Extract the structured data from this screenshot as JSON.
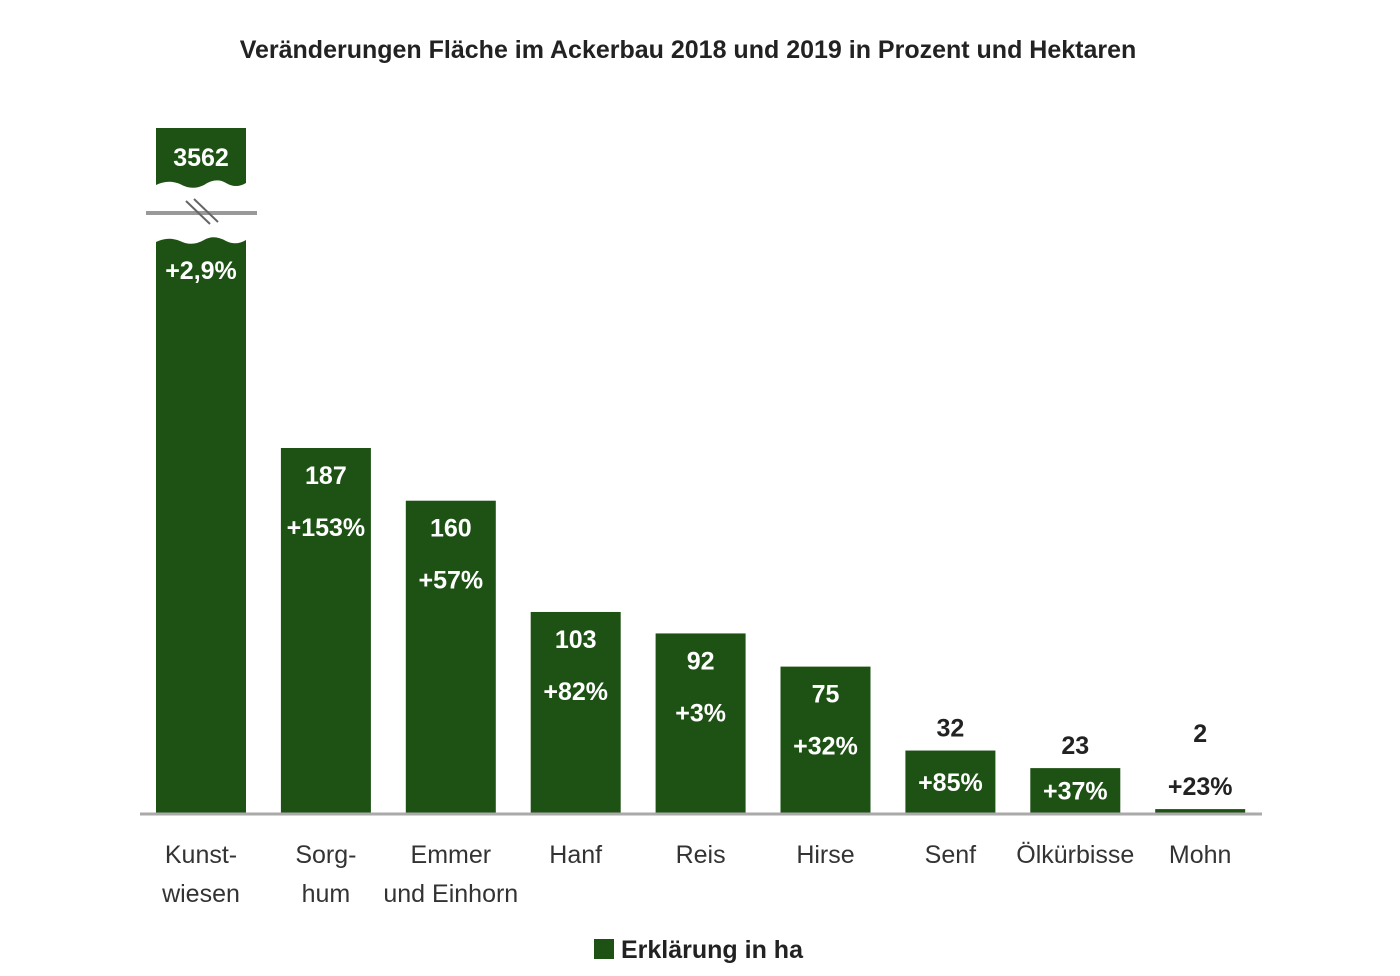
{
  "chart_data": {
    "type": "bar",
    "title": "Veränderungen Fläche im Ackerbau 2018 und 2019 in Prozent und Hektaren",
    "categories": [
      [
        "Kunst-",
        "wiesen"
      ],
      [
        "Sorg-",
        "hum"
      ],
      [
        "Emmer",
        "und Einhorn"
      ],
      [
        "Hanf"
      ],
      [
        "Reis"
      ],
      [
        "Hirse"
      ],
      [
        "Senf"
      ],
      [
        "Ölkürbisse"
      ],
      [
        "Mohn"
      ]
    ],
    "values": [
      3562,
      187,
      160,
      103,
      92,
      75,
      32,
      23,
      2
    ],
    "value_labels": [
      "3562",
      "187",
      "160",
      "103",
      "92",
      "75",
      "32",
      "23",
      "2"
    ],
    "percent_labels": [
      "+2,9%",
      "+153%",
      "+57%",
      "+82%",
      "+3%",
      "+32%",
      "+85%",
      "+37%",
      "+23%"
    ],
    "axis_break": {
      "category": "Kunstwiesen"
    },
    "legend": {
      "label": "Erklärung in ha",
      "placement": "bottom"
    },
    "bar_color": "#1e5214",
    "ylabel": "",
    "xlabel": "",
    "grid": false
  }
}
